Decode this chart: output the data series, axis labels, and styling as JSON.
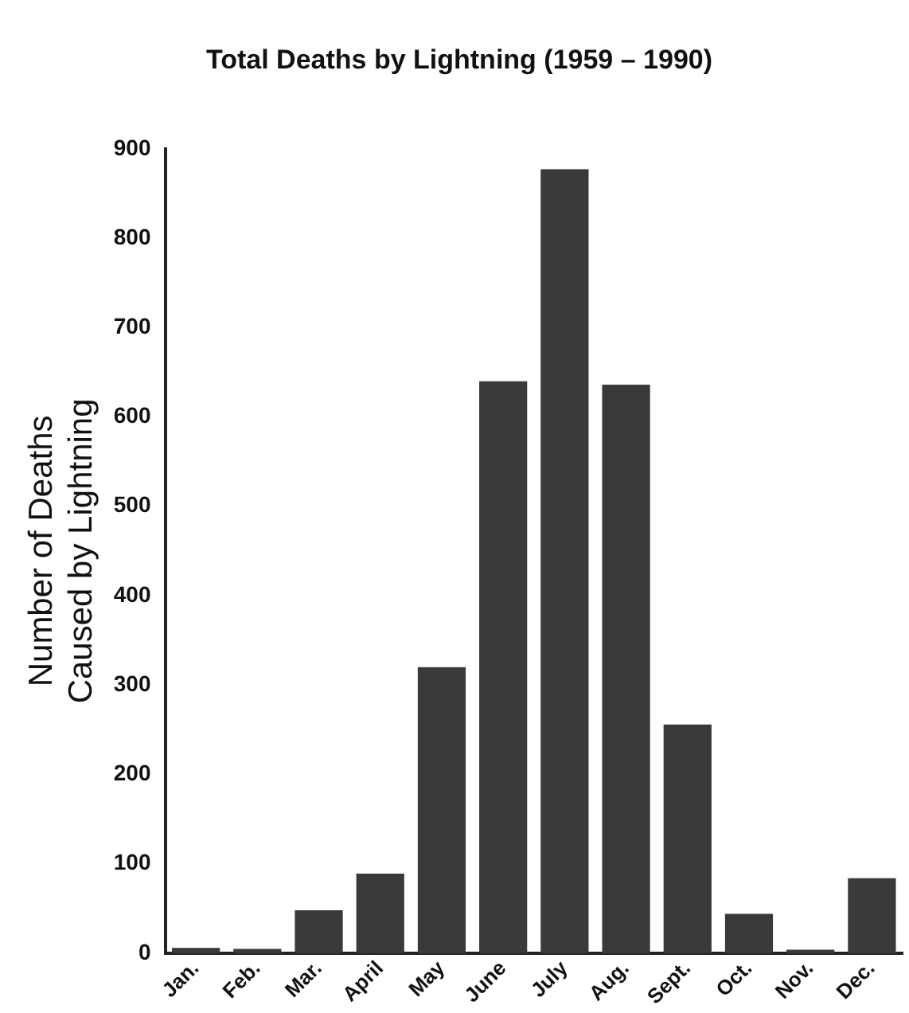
{
  "chart_data": {
    "type": "bar",
    "title": "Total Deaths by Lightning (1959 – 1990)",
    "ylabel": "Number of Deaths\nCaused by Lightning",
    "categories": [
      "Jan.",
      "Feb.",
      "Mar.",
      "April",
      "May",
      "June",
      "July",
      "Aug.",
      "Sept.",
      "Oct.",
      "Nov.",
      "Dec."
    ],
    "values": [
      6,
      5,
      48,
      89,
      320,
      640,
      877,
      636,
      256,
      44,
      4,
      84
    ],
    "color": "#3a3a3a",
    "ylim": [
      0,
      900
    ],
    "yticks": [
      0,
      100,
      200,
      300,
      400,
      500,
      600,
      700,
      800,
      900
    ],
    "grid": false,
    "legend": false
  }
}
